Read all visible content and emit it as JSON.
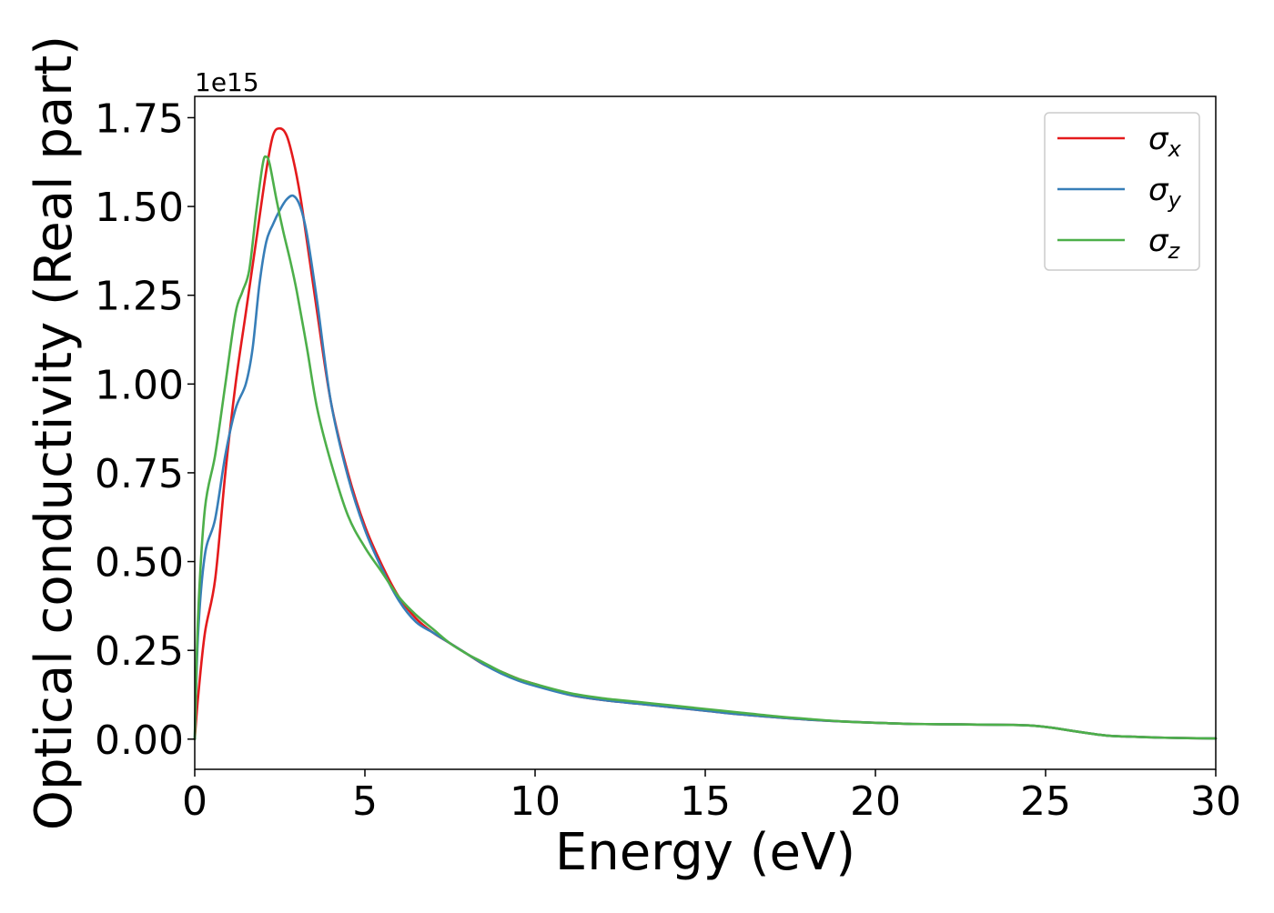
{
  "chart_data": {
    "type": "line",
    "title": "",
    "xlabel": "Energy (eV)",
    "ylabel": "Optical conductivity (Real part)",
    "y_offset_text": "1e15",
    "xlim": [
      0,
      30
    ],
    "ylim": [
      -0.085,
      1.81
    ],
    "x_ticks": [
      0,
      5,
      10,
      15,
      20,
      25,
      30
    ],
    "x_tick_labels": [
      "0",
      "5",
      "10",
      "15",
      "20",
      "25",
      "30"
    ],
    "y_ticks": [
      0.0,
      0.25,
      0.5,
      0.75,
      1.0,
      1.25,
      1.5,
      1.75
    ],
    "y_tick_labels": [
      "0.00",
      "0.25",
      "0.50",
      "0.75",
      "1.00",
      "1.25",
      "1.50",
      "1.75"
    ],
    "grid": false,
    "legend_position": "top-right",
    "series": [
      {
        "name": "σx",
        "symbol": "σ",
        "subscript": "x",
        "color": "#e41a1c",
        "x": [
          0,
          0.1,
          0.3,
          0.6,
          0.9,
          1.2,
          1.5,
          1.8,
          2.1,
          2.3,
          2.5,
          2.7,
          2.9,
          3.1,
          3.3,
          3.6,
          4.0,
          4.5,
          5.0,
          5.5,
          6.0,
          6.5,
          7.0,
          7.5,
          8.0,
          8.5,
          9.0,
          9.5,
          10.0,
          11.0,
          12.0,
          13.0,
          14.0,
          15.0,
          16.0,
          17.0,
          18.0,
          19.0,
          20.0,
          21.0,
          22.0,
          23.0,
          24.0,
          24.6,
          25.2,
          25.8,
          26.3,
          26.8,
          27.5,
          28.5,
          30.0
        ],
        "y": [
          0.0,
          0.12,
          0.3,
          0.45,
          0.75,
          1.0,
          1.2,
          1.4,
          1.6,
          1.7,
          1.72,
          1.7,
          1.63,
          1.53,
          1.4,
          1.2,
          0.95,
          0.75,
          0.6,
          0.49,
          0.4,
          0.34,
          0.3,
          0.27,
          0.24,
          0.21,
          0.19,
          0.17,
          0.155,
          0.125,
          0.11,
          0.1,
          0.09,
          0.08,
          0.07,
          0.062,
          0.055,
          0.05,
          0.046,
          0.043,
          0.042,
          0.041,
          0.04,
          0.038,
          0.032,
          0.023,
          0.016,
          0.01,
          0.007,
          0.004,
          0.002
        ]
      },
      {
        "name": "σy",
        "symbol": "σ",
        "subscript": "y",
        "color": "#377eb8",
        "x": [
          0,
          0.1,
          0.3,
          0.6,
          0.9,
          1.2,
          1.5,
          1.7,
          1.9,
          2.1,
          2.3,
          2.5,
          2.7,
          2.9,
          3.1,
          3.3,
          3.6,
          4.0,
          4.5,
          5.0,
          5.5,
          6.0,
          6.5,
          7.0,
          7.5,
          8.0,
          8.5,
          9.0,
          9.5,
          10.0,
          11.0,
          12.0,
          13.0,
          14.0,
          15.0,
          16.0,
          17.0,
          18.0,
          19.0,
          20.0,
          21.0,
          22.0,
          23.0,
          24.0,
          24.6,
          25.2,
          25.8,
          26.3,
          26.8,
          27.5,
          28.5,
          30.0
        ],
        "y": [
          0.0,
          0.3,
          0.52,
          0.62,
          0.8,
          0.93,
          1.0,
          1.1,
          1.28,
          1.4,
          1.45,
          1.49,
          1.52,
          1.53,
          1.5,
          1.42,
          1.23,
          0.95,
          0.74,
          0.59,
          0.48,
          0.39,
          0.33,
          0.3,
          0.27,
          0.24,
          0.21,
          0.185,
          0.165,
          0.15,
          0.125,
          0.11,
          0.1,
          0.09,
          0.08,
          0.07,
          0.062,
          0.055,
          0.05,
          0.046,
          0.043,
          0.042,
          0.041,
          0.04,
          0.038,
          0.032,
          0.023,
          0.016,
          0.01,
          0.007,
          0.004,
          0.002
        ]
      },
      {
        "name": "σz",
        "symbol": "σ",
        "subscript": "z",
        "color": "#4daf4a",
        "x": [
          0,
          0.1,
          0.3,
          0.6,
          0.9,
          1.2,
          1.4,
          1.6,
          1.8,
          2.0,
          2.1,
          2.2,
          2.4,
          2.6,
          2.8,
          3.0,
          3.3,
          3.6,
          4.0,
          4.5,
          5.0,
          5.5,
          6.0,
          6.5,
          7.0,
          7.5,
          8.0,
          8.5,
          9.0,
          9.5,
          10.0,
          11.0,
          12.0,
          13.0,
          14.0,
          15.0,
          16.0,
          17.0,
          18.0,
          19.0,
          20.0,
          21.0,
          22.0,
          23.0,
          24.0,
          24.6,
          25.2,
          25.8,
          26.3,
          26.8,
          27.5,
          28.5,
          30.0
        ],
        "y": [
          0.0,
          0.35,
          0.65,
          0.8,
          1.0,
          1.2,
          1.26,
          1.32,
          1.48,
          1.62,
          1.64,
          1.62,
          1.52,
          1.43,
          1.35,
          1.26,
          1.1,
          0.93,
          0.78,
          0.63,
          0.54,
          0.47,
          0.4,
          0.35,
          0.31,
          0.27,
          0.24,
          0.215,
          0.19,
          0.17,
          0.155,
          0.13,
          0.115,
          0.105,
          0.095,
          0.085,
          0.075,
          0.065,
          0.057,
          0.05,
          0.046,
          0.043,
          0.042,
          0.041,
          0.04,
          0.038,
          0.032,
          0.023,
          0.016,
          0.01,
          0.007,
          0.004,
          0.002
        ]
      }
    ]
  }
}
